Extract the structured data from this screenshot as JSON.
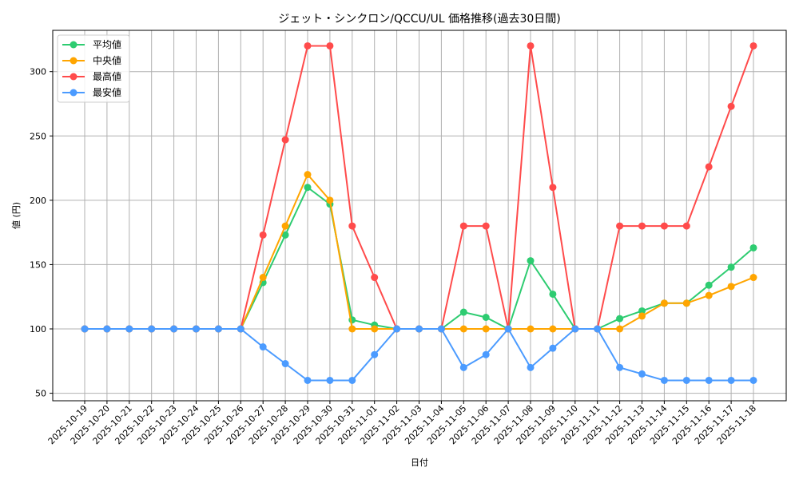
{
  "chart_data": {
    "type": "line",
    "title": "ジェット・シンクロン/QCCU/UL 価格推移(過去30日間)",
    "xlabel": "日付",
    "ylabel": "値 (円)",
    "ylim": [
      47,
      330
    ],
    "yticks": [
      50,
      100,
      150,
      200,
      250,
      300
    ],
    "grid": true,
    "legend_position": "upper left",
    "x": [
      "2025-10-19",
      "2025-10-20",
      "2025-10-21",
      "2025-10-22",
      "2025-10-23",
      "2025-10-24",
      "2025-10-25",
      "2025-10-26",
      "2025-10-27",
      "2025-10-28",
      "2025-10-29",
      "2025-10-30",
      "2025-10-31",
      "2025-11-01",
      "2025-11-02",
      "2025-11-03",
      "2025-11-04",
      "2025-11-05",
      "2025-11-06",
      "2025-11-07",
      "2025-11-08",
      "2025-11-09",
      "2025-11-10",
      "2025-11-11",
      "2025-11-12",
      "2025-11-13",
      "2025-11-14",
      "2025-11-15",
      "2025-11-16",
      "2025-11-17",
      "2025-11-18"
    ],
    "series": [
      {
        "name": "平均値",
        "color": "#2ecc71",
        "values": [
          100,
          100,
          100,
          100,
          100,
          100,
          100,
          100,
          136,
          173,
          210,
          197,
          107,
          103,
          100,
          100,
          100,
          113,
          109,
          100,
          153,
          127,
          100,
          100,
          108,
          114,
          120,
          120,
          134,
          148,
          163
        ]
      },
      {
        "name": "中央値",
        "color": "#ffa500",
        "values": [
          100,
          100,
          100,
          100,
          100,
          100,
          100,
          100,
          140,
          180,
          220,
          200,
          100,
          100,
          100,
          100,
          100,
          100,
          100,
          100,
          100,
          100,
          100,
          100,
          100,
          110,
          120,
          120,
          126,
          133,
          140
        ]
      },
      {
        "name": "最高値",
        "color": "#ff4b4b",
        "values": [
          100,
          100,
          100,
          100,
          100,
          100,
          100,
          100,
          173,
          247,
          320,
          320,
          180,
          140,
          100,
          100,
          100,
          180,
          180,
          100,
          320,
          210,
          100,
          100,
          180,
          180,
          180,
          180,
          226,
          273,
          320
        ]
      },
      {
        "name": "最安値",
        "color": "#4b9bff",
        "values": [
          100,
          100,
          100,
          100,
          100,
          100,
          100,
          100,
          86,
          73,
          60,
          60,
          60,
          80,
          100,
          100,
          100,
          70,
          80,
          100,
          70,
          85,
          100,
          100,
          70,
          65,
          60,
          60,
          60,
          60,
          60
        ]
      }
    ]
  }
}
